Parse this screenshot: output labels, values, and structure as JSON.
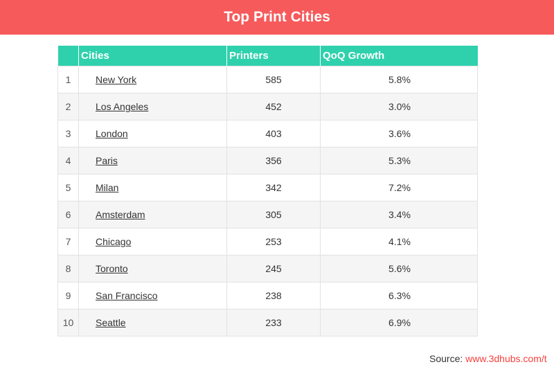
{
  "header": {
    "title": "Top Print Cities"
  },
  "table": {
    "columns": [
      "",
      "Cities",
      "Printers",
      "QoQ Growth"
    ],
    "rows": [
      {
        "rank": "1",
        "city": "New York",
        "printers": "585",
        "growth": "5.8%"
      },
      {
        "rank": "2",
        "city": "Los Angeles",
        "printers": "452",
        "growth": "3.0%"
      },
      {
        "rank": "3",
        "city": "London",
        "printers": "403",
        "growth": "3.6%"
      },
      {
        "rank": "4",
        "city": "Paris",
        "printers": "356",
        "growth": "5.3%"
      },
      {
        "rank": "5",
        "city": "Milan",
        "printers": "342",
        "growth": "7.2%"
      },
      {
        "rank": "6",
        "city": "Amsterdam",
        "printers": "305",
        "growth": "3.4%"
      },
      {
        "rank": "7",
        "city": "Chicago",
        "printers": "253",
        "growth": "4.1%"
      },
      {
        "rank": "8",
        "city": "Toronto",
        "printers": "245",
        "growth": "5.6%"
      },
      {
        "rank": "9",
        "city": "San Francisco",
        "printers": "238",
        "growth": "6.3%"
      },
      {
        "rank": "10",
        "city": "Seattle",
        "printers": "233",
        "growth": "6.9%"
      }
    ]
  },
  "footer": {
    "source_label": "Source:",
    "source_link": "www.3dhubs.com/t"
  },
  "colors": {
    "header": "#f65a5b",
    "table_header": "#2fd1ad",
    "link": "#f6403e"
  }
}
